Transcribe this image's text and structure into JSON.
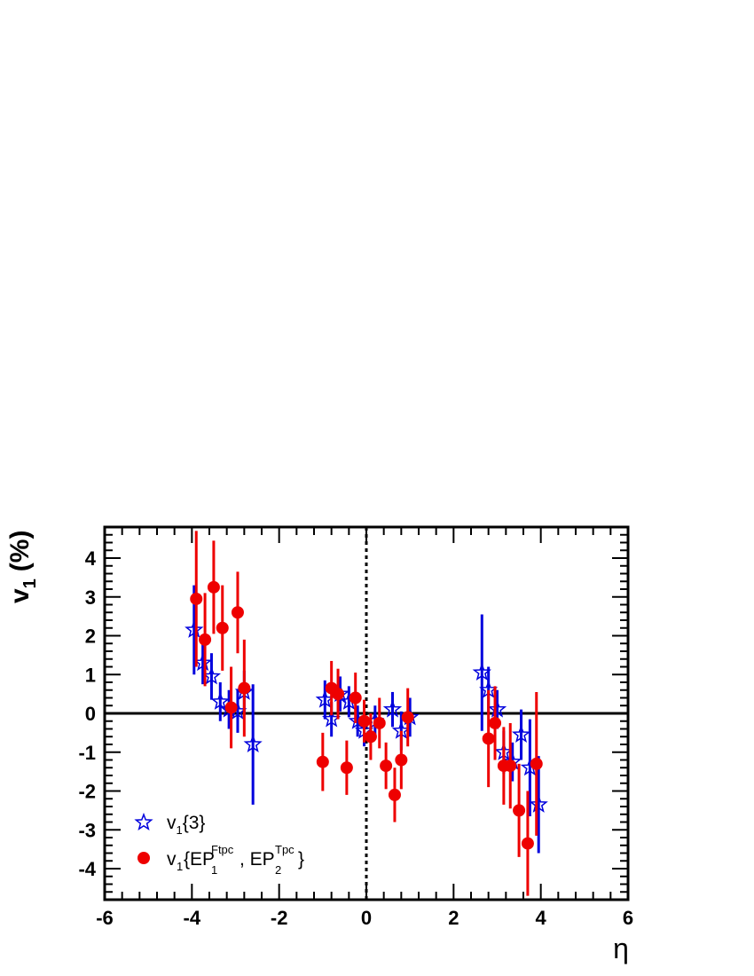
{
  "chart_data": {
    "type": "scatter",
    "xlabel": "η",
    "ylabel": "v",
    "ylabel_sub": "1",
    "ylabel_unit": "(%)",
    "xlim": [
      -6,
      6
    ],
    "ylim": [
      -4.8,
      4.8
    ],
    "xticks": [
      "-6",
      "-4",
      "-2",
      "0",
      "2",
      "4",
      "6"
    ],
    "xtick_values": [
      -6,
      -4,
      -2,
      0,
      2,
      4,
      6
    ],
    "yticks": [
      "-4",
      "-3",
      "-2",
      "-1",
      "0",
      "1",
      "2",
      "3",
      "4"
    ],
    "ytick_values": [
      -4,
      -3,
      -2,
      -1,
      0,
      1,
      2,
      3,
      4
    ],
    "grid": false,
    "reference_lines": {
      "horizontal_y": 0,
      "vertical_dashed_x": 0
    },
    "legend_position": "bottom-left",
    "series": [
      {
        "name": "v1{3}",
        "legend": {
          "main": "v",
          "sub": "1",
          "rest": "{3}"
        },
        "marker": "open-star",
        "color": "#0000dd",
        "points": [
          {
            "x": -3.95,
            "y": 2.15,
            "err": 1.15
          },
          {
            "x": -3.75,
            "y": 1.3,
            "err": 0.55
          },
          {
            "x": -3.55,
            "y": 0.95,
            "err": 0.6
          },
          {
            "x": -3.35,
            "y": 0.3,
            "err": 0.5
          },
          {
            "x": -3.15,
            "y": 0.1,
            "err": 0.5
          },
          {
            "x": -2.95,
            "y": 0.05,
            "err": 0.55
          },
          {
            "x": -2.8,
            "y": 0.55,
            "err": 0.55
          },
          {
            "x": -2.6,
            "y": -0.8,
            "err": 1.55
          },
          {
            "x": -0.95,
            "y": 0.35,
            "err": 0.5
          },
          {
            "x": -0.8,
            "y": -0.15,
            "err": 0.45
          },
          {
            "x": -0.6,
            "y": 0.5,
            "err": 0.45
          },
          {
            "x": -0.4,
            "y": 0.3,
            "err": 0.4
          },
          {
            "x": -0.2,
            "y": -0.2,
            "err": 0.4
          },
          {
            "x": -0.05,
            "y": -0.45,
            "err": 0.4
          },
          {
            "x": 0.2,
            "y": -0.2,
            "err": 0.4
          },
          {
            "x": 0.6,
            "y": 0.1,
            "err": 0.45
          },
          {
            "x": 0.8,
            "y": -0.45,
            "err": 0.5
          },
          {
            "x": 1.0,
            "y": -0.1,
            "err": 0.5
          },
          {
            "x": 2.65,
            "y": 1.05,
            "err": 1.5
          },
          {
            "x": 2.8,
            "y": 0.6,
            "err": 0.6
          },
          {
            "x": 3.0,
            "y": 0.1,
            "err": 0.5
          },
          {
            "x": 3.15,
            "y": -1.0,
            "err": 0.55
          },
          {
            "x": 3.35,
            "y": -1.25,
            "err": 0.5
          },
          {
            "x": 3.55,
            "y": -0.55,
            "err": 0.65
          },
          {
            "x": 3.75,
            "y": -1.4,
            "err": 1.25
          },
          {
            "x": 3.95,
            "y": -2.35,
            "err": 1.25
          }
        ]
      },
      {
        "name": "v1{EP1Ftpc, EP2Tpc}",
        "legend": {
          "main": "v",
          "sub": "1",
          "rest": "{EP",
          "sub2": "1",
          "sup2": "Ftpc",
          "mid": ", EP",
          "sub3": "2",
          "sup3": "Tpc",
          "end": "}"
        },
        "marker": "filled-circle",
        "color": "#ee0000",
        "points": [
          {
            "x": -3.9,
            "y": 2.95,
            "err": 1.75
          },
          {
            "x": -3.7,
            "y": 1.9,
            "err": 1.2
          },
          {
            "x": -3.5,
            "y": 3.25,
            "err": 1.2
          },
          {
            "x": -3.3,
            "y": 2.2,
            "err": 1.1
          },
          {
            "x": -3.1,
            "y": 0.15,
            "err": 1.05
          },
          {
            "x": -2.95,
            "y": 2.6,
            "err": 1.05
          },
          {
            "x": -2.8,
            "y": 0.65,
            "err": 1.25
          },
          {
            "x": -1.0,
            "y": -1.25,
            "err": 0.75
          },
          {
            "x": -0.8,
            "y": 0.65,
            "err": 0.7
          },
          {
            "x": -0.65,
            "y": 0.5,
            "err": 0.65
          },
          {
            "x": -0.45,
            "y": -1.4,
            "err": 0.7
          },
          {
            "x": -0.25,
            "y": 0.4,
            "err": 0.65
          },
          {
            "x": -0.05,
            "y": -0.2,
            "err": 0.55
          },
          {
            "x": 0.1,
            "y": -0.6,
            "err": 0.6
          },
          {
            "x": 0.3,
            "y": -0.25,
            "err": 0.65
          },
          {
            "x": 0.45,
            "y": -1.35,
            "err": 0.6
          },
          {
            "x": 0.65,
            "y": -2.1,
            "err": 0.7
          },
          {
            "x": 0.8,
            "y": -1.2,
            "err": 0.75
          },
          {
            "x": 0.95,
            "y": -0.1,
            "err": 0.75
          },
          {
            "x": 2.8,
            "y": -0.65,
            "err": 1.25
          },
          {
            "x": 2.95,
            "y": -0.25,
            "err": 0.95
          },
          {
            "x": 3.15,
            "y": -1.35,
            "err": 1.0
          },
          {
            "x": 3.3,
            "y": -1.35,
            "err": 1.1
          },
          {
            "x": 3.5,
            "y": -2.5,
            "err": 1.2
          },
          {
            "x": 3.7,
            "y": -3.35,
            "err": 1.35
          },
          {
            "x": 3.9,
            "y": -1.3,
            "err": 1.85
          }
        ]
      }
    ]
  }
}
